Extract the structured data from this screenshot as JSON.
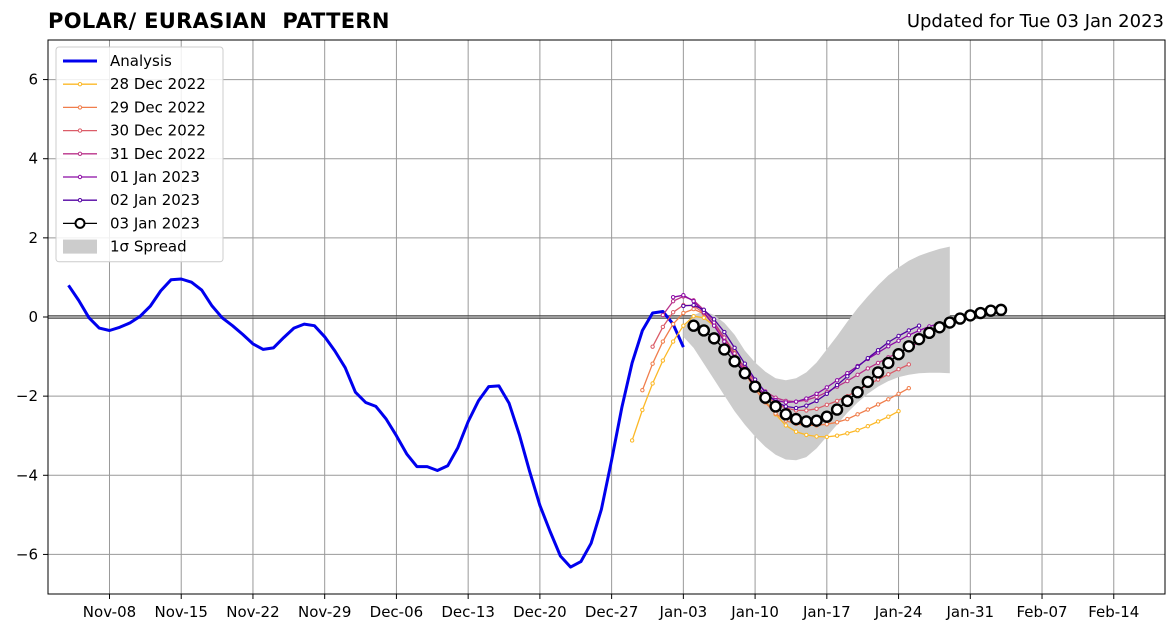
{
  "header": {
    "title": "POLAR/ EURASIAN  PATTERN",
    "updated": "Updated for Tue 03 Jan 2023"
  },
  "chart_data": {
    "type": "line",
    "xlim": [
      "2022-11-02",
      "2023-02-19"
    ],
    "ylim": [
      -7,
      7
    ],
    "grid": true,
    "legend_position": "top-left",
    "x_ticks": [
      "2022-11-08",
      "2022-11-15",
      "2022-11-22",
      "2022-11-29",
      "2022-12-06",
      "2022-12-13",
      "2022-12-20",
      "2022-12-27",
      "2023-01-03",
      "2023-01-10",
      "2023-01-17",
      "2023-01-24",
      "2023-01-31",
      "2023-02-07",
      "2023-02-14"
    ],
    "x_tick_labels": [
      "Nov-08",
      "Nov-15",
      "Nov-22",
      "Nov-29",
      "Dec-06",
      "Dec-13",
      "Dec-20",
      "Dec-27",
      "Jan-03",
      "Jan-10",
      "Jan-17",
      "Jan-24",
      "Jan-31",
      "Feb-07",
      "Feb-14"
    ],
    "y_ticks": [
      -6,
      -4,
      -2,
      0,
      2,
      4,
      6
    ],
    "y_tick_labels": [
      "−6",
      "−4",
      "−2",
      "0",
      "2",
      "4",
      "6"
    ],
    "analysis": {
      "name": "Analysis",
      "color": "#0000ee",
      "start": "2022-11-04",
      "values": [
        0.8,
        0.42,
        -0.02,
        -0.28,
        -0.34,
        -0.26,
        -0.15,
        0.02,
        0.28,
        0.66,
        0.94,
        0.96,
        0.88,
        0.68,
        0.28,
        -0.02,
        -0.22,
        -0.44,
        -0.68,
        -0.82,
        -0.78,
        -0.52,
        -0.28,
        -0.18,
        -0.22,
        -0.5,
        -0.86,
        -1.28,
        -1.9,
        -2.16,
        -2.26,
        -2.58,
        -3.0,
        -3.46,
        -3.78,
        -3.78,
        -3.88,
        -3.76,
        -3.3,
        -2.64,
        -2.12,
        -1.76,
        -1.74,
        -2.18,
        -2.98,
        -3.9,
        -4.76,
        -5.42,
        -6.04,
        -6.32,
        -6.18,
        -5.72,
        -4.86,
        -3.62,
        -2.28,
        -1.16,
        -0.34,
        0.1,
        0.14,
        -0.18,
        -0.76
      ]
    },
    "spread": {
      "name": "1σ Spread",
      "color": "#cccccc",
      "start": "2023-01-03",
      "upper": [
        -0.28,
        0.05,
        0.15,
        0.05,
        -0.15,
        -0.45,
        -0.85,
        -1.15,
        -1.38,
        -1.55,
        -1.6,
        -1.55,
        -1.4,
        -1.15,
        -0.82,
        -0.48,
        -0.12,
        0.22,
        0.52,
        0.8,
        1.05,
        1.25,
        1.42,
        1.55,
        1.64,
        1.72,
        1.78
      ],
      "lower": [
        -0.5,
        -0.78,
        -1.18,
        -1.58,
        -1.98,
        -2.38,
        -2.72,
        -3.02,
        -3.28,
        -3.48,
        -3.6,
        -3.62,
        -3.54,
        -3.32,
        -3.02,
        -2.72,
        -2.42,
        -2.16,
        -1.94,
        -1.76,
        -1.62,
        -1.52,
        -1.46,
        -1.42,
        -1.41,
        -1.41,
        -1.42
      ]
    },
    "forecasts": [
      {
        "name": "28 Dec 2022",
        "color": "#fcb827",
        "start": "2022-12-29",
        "values": [
          -3.12,
          -2.35,
          -1.68,
          -1.1,
          -0.62,
          -0.22,
          0.02,
          -0.02,
          -0.22,
          -0.52,
          -0.9,
          -1.3,
          -1.72,
          -2.12,
          -2.46,
          -2.74,
          -2.9,
          -2.98,
          -3.02,
          -3.03,
          -3.0,
          -2.94,
          -2.86,
          -2.76,
          -2.64,
          -2.52,
          -2.38
        ]
      },
      {
        "name": "29 Dec 2022",
        "color": "#f07e4c",
        "start": "2022-12-30",
        "values": [
          -1.85,
          -1.18,
          -0.62,
          -0.18,
          0.1,
          0.2,
          0.08,
          -0.2,
          -0.58,
          -1.0,
          -1.42,
          -1.82,
          -2.16,
          -2.44,
          -2.62,
          -2.7,
          -2.74,
          -2.74,
          -2.71,
          -2.66,
          -2.58,
          -2.46,
          -2.34,
          -2.21,
          -2.08,
          -1.94,
          -1.8
        ]
      },
      {
        "name": "30 Dec 2022",
        "color": "#db5c68",
        "start": "2022-12-31",
        "values": [
          -0.75,
          -0.25,
          0.12,
          0.3,
          0.28,
          0.1,
          -0.2,
          -0.58,
          -0.98,
          -1.36,
          -1.7,
          -1.98,
          -2.18,
          -2.3,
          -2.36,
          -2.36,
          -2.32,
          -2.22,
          -2.12,
          -2.0,
          -1.86,
          -1.72,
          -1.58,
          -1.45,
          -1.32,
          -1.2
        ]
      },
      {
        "name": "31 Dec 2022",
        "color": "#b93289",
        "start": "2023-01-01",
        "values": [
          0.05,
          0.4,
          0.52,
          0.42,
          0.18,
          -0.14,
          -0.52,
          -0.92,
          -1.3,
          -1.62,
          -1.88,
          -2.04,
          -2.12,
          -2.14,
          -2.1,
          -2.02,
          -1.9,
          -1.76,
          -1.62,
          -1.46,
          -1.3,
          -1.16,
          -1.02,
          -0.9,
          -0.78,
          -0.64
        ]
      },
      {
        "name": "01 Jan 2023",
        "color": "#8b0aa5",
        "start": "2023-01-02",
        "values": [
          0.5,
          0.55,
          0.4,
          0.12,
          -0.22,
          -0.62,
          -1.02,
          -1.4,
          -1.72,
          -1.96,
          -2.1,
          -2.16,
          -2.14,
          -2.06,
          -1.94,
          -1.78,
          -1.6,
          -1.42,
          -1.24,
          -1.06,
          -0.9,
          -0.74,
          -0.6,
          -0.46,
          -0.34,
          -0.24,
          -0.16
        ]
      },
      {
        "name": "02 Jan 2023",
        "color": "#5302a3",
        "start": "2023-01-03",
        "values": [
          0.28,
          0.3,
          0.18,
          -0.06,
          -0.38,
          -0.78,
          -1.18,
          -1.58,
          -1.9,
          -2.14,
          -2.26,
          -2.3,
          -2.24,
          -2.12,
          -1.94,
          -1.72,
          -1.5,
          -1.26,
          -1.04,
          -0.84,
          -0.64,
          -0.48,
          -0.34,
          -0.22
        ]
      },
      {
        "name": "03 Jan 2023",
        "color": "#000000",
        "start": "2023-01-04",
        "values": [
          -0.22,
          -0.34,
          -0.54,
          -0.82,
          -1.12,
          -1.42,
          -1.76,
          -2.04,
          -2.26,
          -2.46,
          -2.58,
          -2.64,
          -2.62,
          -2.52,
          -2.34,
          -2.12,
          -1.9,
          -1.64,
          -1.4,
          -1.16,
          -0.94,
          -0.74,
          -0.56,
          -0.4,
          -0.26,
          -0.14,
          -0.04,
          0.04,
          0.1,
          0.16,
          0.18
        ]
      }
    ],
    "legend": [
      {
        "label": "Analysis",
        "kind": "line",
        "color": "#0000ee"
      },
      {
        "label": "28 Dec 2022",
        "kind": "small-marker",
        "color": "#fcb827"
      },
      {
        "label": "29 Dec 2022",
        "kind": "small-marker",
        "color": "#f07e4c"
      },
      {
        "label": "30 Dec 2022",
        "kind": "small-marker",
        "color": "#db5c68"
      },
      {
        "label": "31 Dec 2022",
        "kind": "small-marker",
        "color": "#b93289"
      },
      {
        "label": "01 Jan 2023",
        "kind": "small-marker",
        "color": "#8b0aa5"
      },
      {
        "label": "02 Jan 2023",
        "kind": "small-marker",
        "color": "#5302a3"
      },
      {
        "label": "03 Jan 2023",
        "kind": "big-marker",
        "color": "#000000"
      },
      {
        "label": "1σ Spread",
        "kind": "patch",
        "color": "#cccccc"
      }
    ]
  }
}
